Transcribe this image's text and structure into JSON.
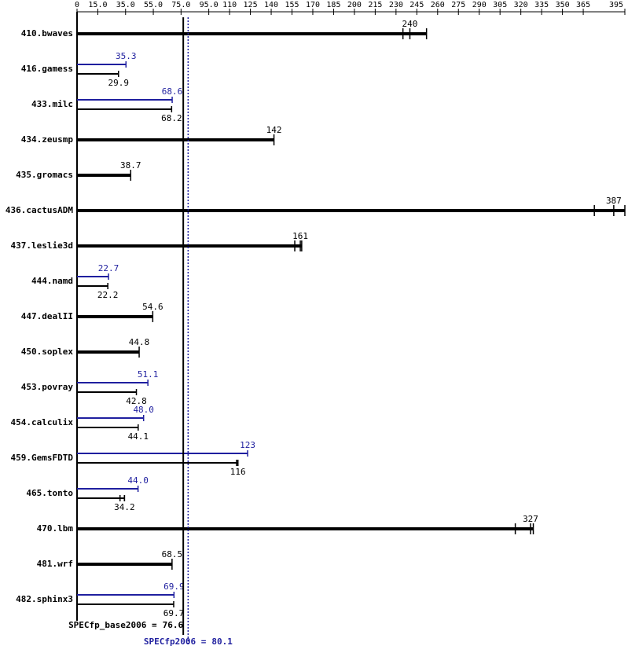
{
  "chart_data": {
    "type": "hbar-ranges",
    "categories": [
      "410.bwaves",
      "416.gamess",
      "433.milc",
      "434.zeusmp",
      "435.gromacs",
      "436.cactusADM",
      "437.leslie3d",
      "444.namd",
      "447.dealII",
      "450.soplex",
      "453.povray",
      "454.calculix",
      "459.GemsFDTD",
      "465.tonto",
      "470.lbm",
      "481.wrf",
      "482.sphinx3"
    ],
    "series": [
      {
        "color": "#000000",
        "values": [
          240,
          29.9,
          68.2,
          142,
          38.7,
          387,
          161,
          22.2,
          54.6,
          44.8,
          42.8,
          44.1,
          116,
          34.2,
          327,
          68.5,
          69.7
        ],
        "runs": [
          [
            235,
            240,
            252
          ],
          null,
          null,
          null,
          null,
          [
            373,
            387,
            395
          ],
          [
            157,
            161,
            162
          ],
          null,
          null,
          null,
          null,
          null,
          [
            115,
            116,
            116
          ],
          [
            31,
            34.2,
            34.2
          ],
          [
            316,
            327,
            329
          ],
          null,
          null
        ]
      },
      {
        "color": "#1f1f9f",
        "values": [
          null,
          35.3,
          68.6,
          null,
          null,
          null,
          null,
          22.7,
          null,
          null,
          51.1,
          48.0,
          123,
          44.0,
          null,
          null,
          69.9
        ],
        "value_labels": [
          null,
          "35.3",
          "68.6",
          null,
          null,
          null,
          null,
          "22.7",
          null,
          null,
          "51.1",
          "48.0",
          "123",
          "44.0",
          null,
          null,
          "69.9"
        ]
      }
    ],
    "xlim": [
      0,
      395
    ],
    "xticks": [
      0,
      {
        "value": 15,
        "label": "15.0"
      },
      {
        "value": 35,
        "label": "35.0"
      },
      {
        "value": 55,
        "label": "55.0"
      },
      {
        "value": 75,
        "label": "75.0"
      },
      {
        "value": 95,
        "label": "95.0"
      },
      110,
      125,
      140,
      155,
      170,
      185,
      200,
      215,
      230,
      245,
      260,
      275,
      290,
      305,
      320,
      335,
      350,
      365,
      395
    ],
    "summary": [
      {
        "label": "SPECfp_base2006 =",
        "value": 76.6,
        "color": "#000000"
      },
      {
        "label": "SPECfp2006 =",
        "value": 80.1,
        "color": "#1f1f9f"
      }
    ]
  }
}
